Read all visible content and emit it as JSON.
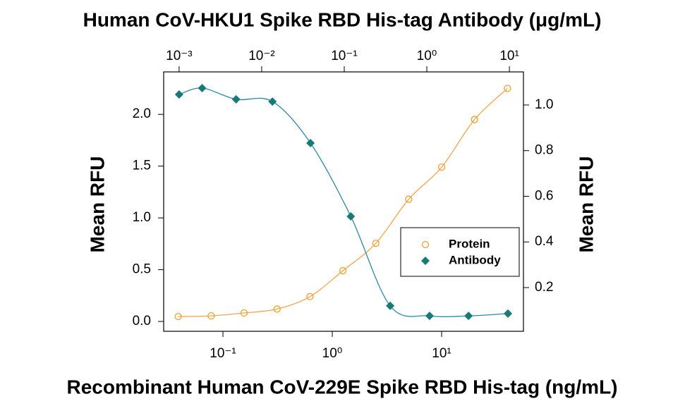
{
  "chart_data": {
    "type": "scatter",
    "title": "Human CoV-HKU1 Spike RBD His-tag Antibody (μg/mL)",
    "x_label": "Recombinant Human CoV-229E Spike RBD His-tag (ng/mL)",
    "y_label": "Mean RFU",
    "y2_label": "Mean RFU",
    "xscale": "log",
    "x2scale": "log",
    "xlim": [
      0.0287,
      56
    ],
    "xticks": [
      {
        "value": 0.1,
        "label": "10⁻¹"
      },
      {
        "value": 1,
        "label": "10⁰"
      },
      {
        "value": 10,
        "label": "10¹"
      }
    ],
    "x2lim": [
      0.00065,
      14.8
    ],
    "x2ticks": [
      {
        "value": 0.001,
        "label": "10⁻³"
      },
      {
        "value": 0.01,
        "label": "10⁻²"
      },
      {
        "value": 0.1,
        "label": "10⁻¹"
      },
      {
        "value": 1,
        "label": "10⁰"
      },
      {
        "value": 10,
        "label": "10¹"
      }
    ],
    "ylim": [
      -0.095,
      2.41
    ],
    "yticks": [
      {
        "value": 0,
        "label": "0.0"
      },
      0.5,
      {
        "value": 1,
        "label": "1.0"
      },
      1.5,
      {
        "value": 2,
        "label": "2.0"
      }
    ],
    "y2lim": [
      0.0085,
      1.145
    ],
    "y2ticks": [
      0.2,
      0.4,
      0.6,
      0.8,
      {
        "value": 1,
        "label": "1.0"
      }
    ],
    "legend": "center right",
    "series": [
      {
        "name": "Protein",
        "color": "#f0a030",
        "line_color": "#f3a64a",
        "marker": "open-circle",
        "x": [
          0.039,
          0.078,
          0.156,
          0.3125,
          0.625,
          1.25,
          2.5,
          5,
          10,
          20,
          40
        ],
        "values": [
          0.048,
          0.054,
          0.082,
          0.12,
          0.24,
          0.49,
          0.755,
          1.18,
          1.49,
          1.95,
          2.25
        ]
      },
      {
        "name": "Antibody",
        "color": "#167a76",
        "line_color": "#2a8aa8",
        "marker": "diamond",
        "axis": "y2",
        "x_axis": "x2",
        "x": [
          0.001,
          0.0019,
          0.0049,
          0.0135,
          0.039,
          0.12,
          0.36,
          1.08,
          3.2,
          9.6
        ],
        "values": [
          1.046,
          1.074,
          1.025,
          1.015,
          0.833,
          0.512,
          0.12,
          0.076,
          0.076,
          0.086
        ]
      }
    ]
  }
}
